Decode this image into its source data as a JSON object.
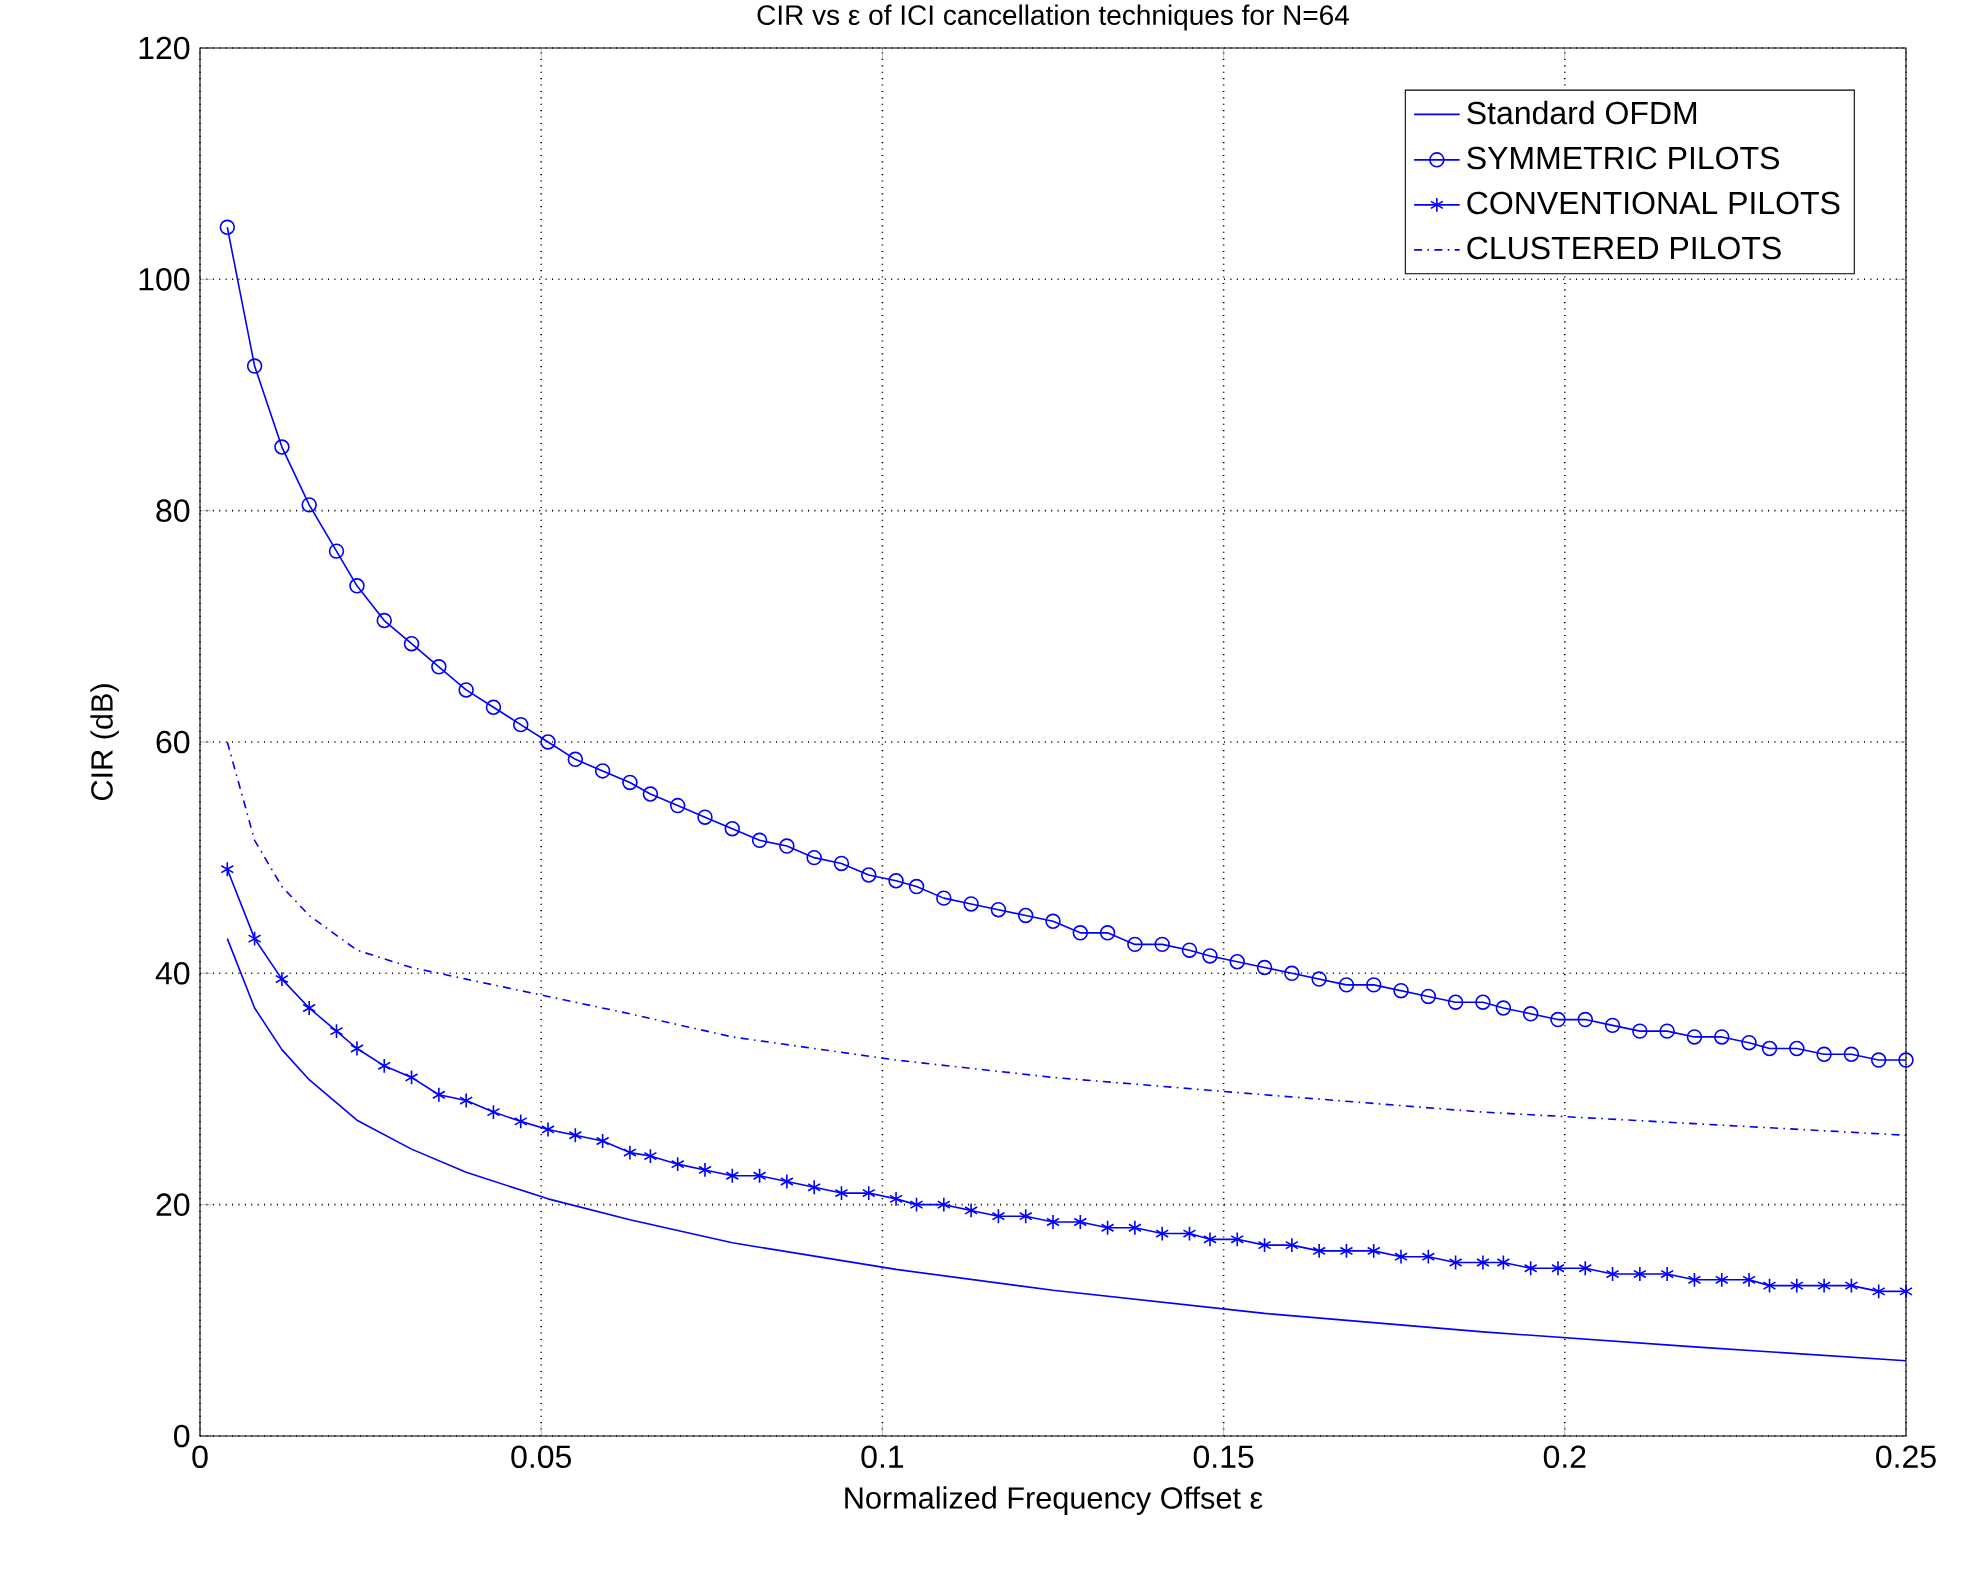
{
  "chart_data": {
    "type": "line",
    "title": "CIR vs ε of ICI cancellation techniques for N=64",
    "xlabel": "Normalized Frequency Offset ε",
    "ylabel": "CIR (dB)",
    "xlim": [
      0,
      0.25
    ],
    "ylim": [
      0,
      120
    ],
    "xticks": [
      0,
      0.05,
      0.1,
      0.15,
      0.2,
      0.25
    ],
    "yticks": [
      0,
      20,
      40,
      60,
      80,
      100,
      120
    ],
    "grid": true,
    "legend": "top right",
    "series": [
      {
        "name": "Standard OFDM",
        "color": "#0000ff",
        "marker": "none",
        "line_style": "solid",
        "x": [
          0.004,
          0.008,
          0.012,
          0.016,
          0.023,
          0.031,
          0.039,
          0.051,
          0.063,
          0.078,
          0.102,
          0.125,
          0.156,
          0.188,
          0.219,
          0.25
        ],
        "values": [
          43,
          37,
          33.4,
          30.8,
          27.3,
          24.8,
          22.8,
          20.5,
          18.7,
          16.7,
          14.4,
          12.6,
          10.6,
          9,
          7.7,
          6.5
        ]
      },
      {
        "name": "SYMMETRIC PILOTS",
        "color": "#0000ff",
        "marker": "circle",
        "line_style": "solid",
        "x": [
          0.004,
          0.008,
          0.012,
          0.016,
          0.02,
          0.023,
          0.027,
          0.031,
          0.035,
          0.039,
          0.043,
          0.047,
          0.051,
          0.055,
          0.059,
          0.063,
          0.066,
          0.07,
          0.074,
          0.078,
          0.082,
          0.086,
          0.09,
          0.094,
          0.098,
          0.102,
          0.105,
          0.109,
          0.113,
          0.117,
          0.121,
          0.125,
          0.129,
          0.133,
          0.137,
          0.141,
          0.145,
          0.148,
          0.152,
          0.156,
          0.16,
          0.164,
          0.168,
          0.172,
          0.176,
          0.18,
          0.184,
          0.188,
          0.191,
          0.195,
          0.199,
          0.203,
          0.207,
          0.211,
          0.215,
          0.219,
          0.223,
          0.227,
          0.23,
          0.234,
          0.238,
          0.242,
          0.246,
          0.25
        ],
        "values": [
          104.5,
          92.5,
          85.5,
          80.5,
          76.5,
          73.5,
          70.5,
          68.5,
          66.5,
          64.5,
          63,
          61.5,
          60,
          58.5,
          57.5,
          56.5,
          55.5,
          54.5,
          53.5,
          52.5,
          51.5,
          51,
          50,
          49.5,
          48.5,
          48,
          47.5,
          46.5,
          46,
          45.5,
          45,
          44.5,
          43.5,
          43.5,
          42.5,
          42.5,
          42,
          41.5,
          41,
          40.5,
          40,
          39.5,
          39,
          39,
          38.5,
          38,
          37.5,
          37.5,
          37,
          36.5,
          36,
          36,
          35.5,
          35,
          35,
          34.5,
          34.5,
          34,
          33.5,
          33.5,
          33,
          33,
          32.5,
          32.5
        ]
      },
      {
        "name": "CONVENTIONAL PILOTS",
        "color": "#0000ff",
        "marker": "cross",
        "line_style": "solid",
        "x": [
          0.004,
          0.008,
          0.012,
          0.016,
          0.02,
          0.023,
          0.027,
          0.031,
          0.035,
          0.039,
          0.043,
          0.047,
          0.051,
          0.055,
          0.059,
          0.063,
          0.066,
          0.07,
          0.074,
          0.078,
          0.082,
          0.086,
          0.09,
          0.094,
          0.098,
          0.102,
          0.105,
          0.109,
          0.113,
          0.117,
          0.121,
          0.125,
          0.129,
          0.133,
          0.137,
          0.141,
          0.145,
          0.148,
          0.152,
          0.156,
          0.16,
          0.164,
          0.168,
          0.172,
          0.176,
          0.18,
          0.184,
          0.188,
          0.191,
          0.195,
          0.199,
          0.203,
          0.207,
          0.211,
          0.215,
          0.219,
          0.223,
          0.227,
          0.23,
          0.234,
          0.238,
          0.242,
          0.246,
          0.25
        ],
        "values": [
          49,
          43,
          39.5,
          37,
          35,
          33.5,
          32,
          31,
          29.5,
          29,
          28,
          27.2,
          26.5,
          26,
          25.5,
          24.5,
          24.2,
          23.5,
          23,
          22.5,
          22.5,
          22,
          21.5,
          21,
          21,
          20.5,
          20,
          20,
          19.5,
          19,
          19,
          18.5,
          18.5,
          18,
          18,
          17.5,
          17.5,
          17,
          17,
          16.5,
          16.5,
          16,
          16,
          16,
          15.5,
          15.5,
          15,
          15,
          15,
          14.5,
          14.5,
          14.5,
          14,
          14,
          14,
          13.5,
          13.5,
          13.5,
          13,
          13,
          13,
          13,
          12.5,
          12.5
        ]
      },
      {
        "name": "CLUSTERED PILOTS",
        "color": "#0000ff",
        "marker": "none",
        "line_style": "dashdot",
        "x": [
          0.004,
          0.008,
          0.012,
          0.016,
          0.023,
          0.031,
          0.039,
          0.051,
          0.063,
          0.078,
          0.102,
          0.125,
          0.156,
          0.188,
          0.219,
          0.25
        ],
        "values": [
          60,
          51.5,
          47.5,
          45,
          42,
          40.5,
          39.5,
          38,
          36.5,
          34.5,
          32.5,
          31,
          29.5,
          28,
          27,
          26
        ]
      }
    ]
  }
}
